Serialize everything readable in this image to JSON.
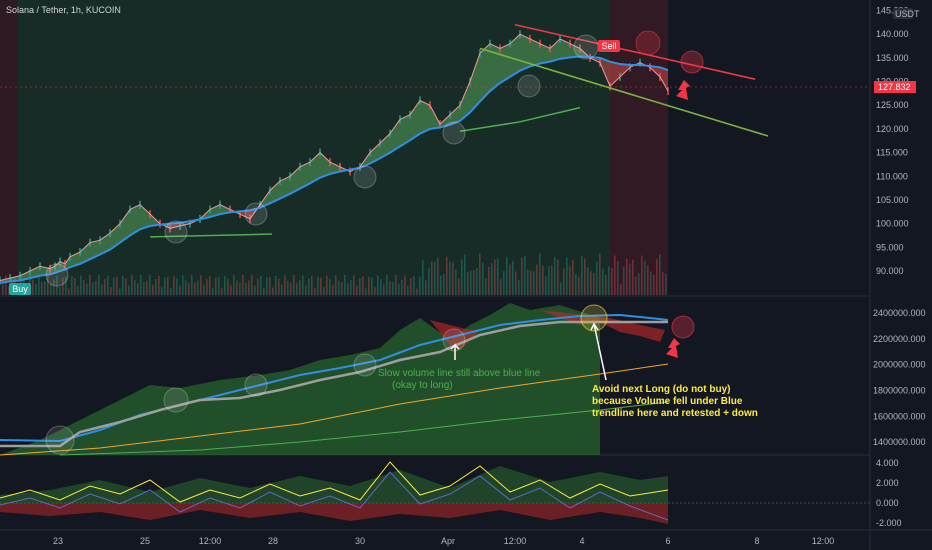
{
  "header": {
    "title": "Solana / Tether, 1h, KUCOIN",
    "currency_badge": "USDT"
  },
  "colors": {
    "background": "#131722",
    "bull_zone": "#1b3a2a",
    "bear_zone": "#3a1c24",
    "ema_blue": "#2f8ee5",
    "ribbon_green": "#66bb6a",
    "ribbon_red": "#ef5350",
    "slow_line_green": "#4caf50",
    "resistance_red": "#f23645",
    "support_green": "#7cb342",
    "orange_line": "#f5a623",
    "gray_line": "#9e9e9e",
    "price_label": "#f23645"
  },
  "price_tag": "127.832",
  "x_axis": {
    "labels": [
      "23",
      "25",
      "12:00",
      "28",
      "30",
      "Apr",
      "12:00",
      "4",
      "6",
      "8",
      "12:00"
    ]
  },
  "annotations": {
    "buy_label": "Buy",
    "sell_label": "Sell",
    "note_green_lines": [
      "Slow volume line still above blue line",
      "(okay to long)"
    ],
    "note_yellow_lines": [
      "Avoid next Long (do not buy)",
      "because Volume fell under Blue",
      "trendline here and retested + down"
    ]
  },
  "chart_data": [
    {
      "type": "line",
      "title": "Solana / Tether, 1h, KUCOIN",
      "ylabel": "USDT",
      "y_ticks": [
        90,
        95,
        100,
        105,
        110,
        115,
        120,
        125,
        130,
        135,
        140,
        145
      ],
      "y_tick_labels": [
        "90.000",
        "95.000",
        "100.000",
        "105.000",
        "110.000",
        "115.000",
        "120.000",
        "125.000",
        "130.000",
        "135.000",
        "140.000",
        "145.000"
      ],
      "ylim": [
        86,
        146
      ],
      "x": [
        0,
        10,
        20,
        30,
        40,
        50,
        55,
        60,
        65,
        70,
        80,
        90,
        100,
        110,
        120,
        130,
        140,
        150,
        160,
        170,
        180,
        190,
        200,
        210,
        220,
        230,
        240,
        250,
        260,
        270,
        280,
        290,
        300,
        310,
        320,
        330,
        340,
        350,
        360,
        370,
        380,
        390,
        400,
        410,
        420,
        430,
        440,
        450,
        460,
        470,
        480,
        490,
        500,
        510,
        520,
        530,
        540,
        550,
        560,
        570,
        580,
        590,
        600,
        610,
        620,
        630,
        640,
        650,
        660,
        668
      ],
      "series": [
        {
          "values": [
            88,
            88.5,
            89,
            90,
            91,
            90.5,
            91,
            92,
            91.5,
            93,
            94,
            96,
            96.5,
            98,
            100,
            103,
            104,
            102,
            100,
            99,
            99.5,
            100,
            101,
            103,
            104,
            103,
            102,
            101,
            104,
            107,
            109,
            110,
            112,
            113,
            115,
            113,
            112,
            111,
            112,
            115,
            117,
            119,
            122,
            123,
            126,
            125,
            121,
            123,
            125,
            130,
            136,
            138,
            137,
            138,
            140,
            139,
            138,
            137,
            139,
            138,
            137,
            135,
            134,
            129,
            131,
            133,
            134,
            133,
            131,
            128
          ]
        },
        {
          "name": "",
          "values": [
            87.5,
            87.8,
            88,
            88.5,
            89,
            89.3,
            89.6,
            90,
            90.3,
            90.8,
            91.5,
            92.5,
            93.5,
            94.5,
            96,
            97.5,
            98.8,
            99.5,
            99.8,
            100,
            100.2,
            100.5,
            100.9,
            101.4,
            102,
            102.4,
            102.6,
            102.8,
            103.4,
            104.3,
            105.3,
            106.3,
            107.4,
            108.5,
            109.7,
            110.5,
            111,
            111.4,
            111.8,
            112.7,
            113.8,
            115,
            116.3,
            117.6,
            119,
            120,
            120.3,
            120.9,
            121.7,
            123.5,
            125.8,
            128,
            129.7,
            131,
            132.3,
            133.2,
            133.8,
            134.2,
            134.8,
            135.1,
            135.3,
            135.2,
            135,
            134.2,
            133.7,
            133.5,
            133.5,
            133.3,
            133,
            132.4
          ]
        }
      ],
      "trendlines": [
        {
          "name": "resistance",
          "points": [
            [
              515,
              142
            ],
            [
              755,
              130.5
            ]
          ]
        },
        {
          "name": "support",
          "points": [
            [
              480,
              137
            ],
            [
              768,
              118.5
            ]
          ]
        }
      ]
    },
    {
      "type": "line",
      "y_tick_labels": [
        "1400000.000",
        "1600000.000",
        "1800000.000",
        "2000000.000",
        "2200000.000",
        "2400000.000"
      ],
      "y_ticks": [
        1400000,
        1600000,
        1800000,
        2000000,
        2200000,
        2400000
      ],
      "ylim": [
        1300000,
        2500000
      ]
    },
    {
      "type": "line",
      "y_tick_labels": [
        "-2.000",
        "0.000",
        "2.000",
        "4.000"
      ],
      "y_ticks": [
        -2,
        0,
        2,
        4
      ],
      "ylim": [
        -2.6,
        4.2
      ]
    }
  ]
}
